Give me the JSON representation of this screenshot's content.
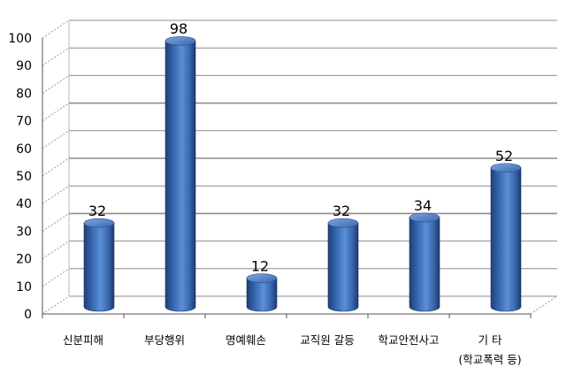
{
  "chart_data": {
    "type": "bar",
    "title": "",
    "xlabel": "",
    "ylabel": "",
    "categories": [
      "신분피해",
      "부당행위",
      "명예훼손",
      "교직원 갈등",
      "학교안전사고",
      "기 타"
    ],
    "category_sublabels": [
      "",
      "",
      "",
      "",
      "",
      "(학교폭력 등)"
    ],
    "values": [
      32,
      98,
      12,
      32,
      34,
      52
    ],
    "ylim": [
      0,
      100
    ],
    "yticks": [
      0,
      10,
      20,
      30,
      40,
      50,
      60,
      70,
      80,
      90,
      100
    ],
    "grid": true,
    "bar_color": "#3f6fb8",
    "data_labels": true
  }
}
